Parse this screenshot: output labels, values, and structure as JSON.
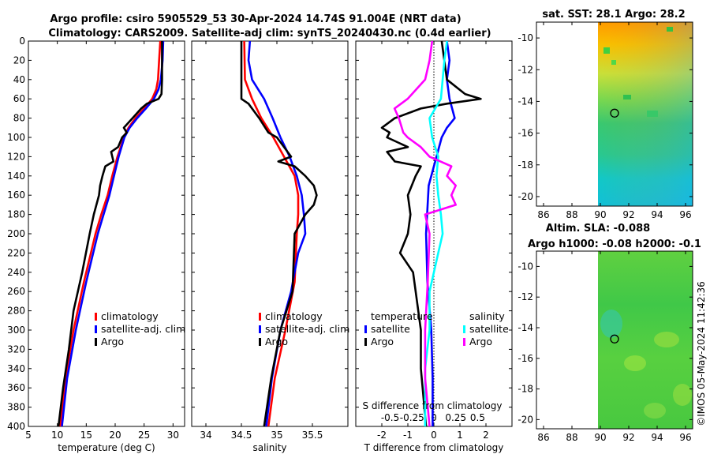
{
  "title": {
    "line1": "Argo profile: csiro 5905529_53 30-Apr-2024 14.74S 91.004E (NRT data)",
    "line2": "Climatology: CARS2009. Satellite-adj clim: synTS_20240430.nc (0.4d earlier)"
  },
  "colors": {
    "climatology": "#ff0000",
    "satellite": "#0000ff",
    "argo": "#000000",
    "argo_diff_t": "#ff00ff",
    "satellite_diff_s": "#00ffff"
  },
  "chart_data": [
    {
      "type": "line",
      "id": "temperature",
      "xlabel": "temperature (deg C)",
      "ylabel": "",
      "xlim": [
        5,
        32
      ],
      "ylim": [
        400,
        0
      ],
      "xticks": [
        "5",
        "10",
        "15",
        "20",
        "25",
        "30"
      ],
      "yticks": [
        "0",
        "20",
        "40",
        "60",
        "80",
        "100",
        "120",
        "140",
        "160",
        "180",
        "200",
        "220",
        "240",
        "260",
        "280",
        "300",
        "320",
        "340",
        "360",
        "380",
        "400"
      ],
      "legend": [
        "climatology",
        "satellite-adj. clim",
        "Argo"
      ],
      "series": [
        {
          "name": "climatology",
          "color": "#ff0000",
          "depth": [
            0,
            20,
            40,
            50,
            60,
            70,
            80,
            90,
            100,
            120,
            140,
            160,
            180,
            200,
            250,
            300,
            350,
            400
          ],
          "values": [
            27.8,
            27.6,
            27.4,
            27.1,
            26.4,
            25.0,
            23.5,
            22.3,
            21.5,
            20.4,
            19.5,
            18.7,
            17.6,
            16.6,
            14.6,
            12.8,
            11.4,
            10.5
          ]
        },
        {
          "name": "satellite-adj. clim",
          "color": "#0000ff",
          "depth": [
            0,
            20,
            40,
            50,
            60,
            70,
            80,
            90,
            100,
            120,
            140,
            160,
            180,
            200,
            250,
            300,
            350,
            400
          ],
          "values": [
            28.3,
            28.2,
            27.9,
            27.5,
            26.7,
            25.3,
            23.8,
            22.5,
            21.6,
            20.6,
            19.8,
            19.0,
            18.0,
            17.0,
            15.0,
            13.2,
            11.7,
            10.8
          ]
        },
        {
          "name": "Argo",
          "color": "#000000",
          "depth": [
            0,
            40,
            55,
            60,
            65,
            70,
            80,
            90,
            95,
            100,
            110,
            115,
            125,
            130,
            140,
            150,
            160,
            180,
            200,
            240,
            280,
            320,
            360,
            400
          ],
          "values": [
            28.1,
            28.1,
            28.0,
            27.5,
            25.5,
            24.5,
            23.0,
            21.5,
            22.0,
            21.2,
            20.5,
            19.3,
            19.7,
            18.3,
            17.8,
            17.4,
            17.2,
            16.3,
            15.6,
            14.3,
            12.8,
            12.0,
            11.0,
            10.2
          ]
        }
      ]
    },
    {
      "type": "line",
      "id": "salinity",
      "xlabel": "salinity",
      "ylabel": "",
      "xlim": [
        33.8,
        36.0
      ],
      "ylim": [
        400,
        0
      ],
      "xticks": [
        "34",
        "34.5",
        "35",
        "35.5"
      ],
      "legend": [
        "climatology",
        "satellite-adj. clim",
        "Argo"
      ],
      "series": [
        {
          "name": "climatology",
          "color": "#ff0000",
          "depth": [
            0,
            40,
            60,
            80,
            100,
            120,
            140,
            160,
            180,
            200,
            250,
            300,
            350,
            400
          ],
          "values": [
            34.54,
            34.55,
            34.65,
            34.78,
            34.95,
            35.1,
            35.25,
            35.3,
            35.3,
            35.28,
            35.25,
            35.12,
            34.97,
            34.88
          ]
        },
        {
          "name": "satellite-adj. clim",
          "color": "#0000ff",
          "depth": [
            0,
            20,
            40,
            60,
            80,
            100,
            120,
            140,
            160,
            180,
            200,
            220,
            260,
            300,
            350,
            400
          ],
          "values": [
            34.62,
            34.6,
            34.65,
            34.82,
            34.94,
            35.05,
            35.18,
            35.28,
            35.35,
            35.38,
            35.4,
            35.3,
            35.2,
            35.05,
            34.93,
            34.85
          ]
        },
        {
          "name": "Argo",
          "color": "#000000",
          "depth": [
            0,
            30,
            60,
            65,
            80,
            95,
            100,
            120,
            125,
            130,
            140,
            150,
            160,
            170,
            180,
            200,
            260,
            300,
            350,
            400
          ],
          "values": [
            34.5,
            34.5,
            34.5,
            34.6,
            34.75,
            34.88,
            35.0,
            35.2,
            35.02,
            35.25,
            35.4,
            35.52,
            35.56,
            35.52,
            35.4,
            35.25,
            35.22,
            35.05,
            34.92,
            34.82
          ]
        }
      ]
    },
    {
      "type": "line",
      "id": "differences",
      "xlabel": "T difference from climatology",
      "xlabel_top": "S difference from climatology",
      "xlim": [
        -3,
        3
      ],
      "ylim": [
        400,
        0
      ],
      "xticks": [
        "-2",
        "-1",
        "0",
        "1",
        "2"
      ],
      "xticks_salinity": [
        "-0.5",
        "-0.25",
        "0",
        "0.25",
        "0.5"
      ],
      "legend_titles": [
        "temperature",
        "salinity"
      ],
      "legend": [
        "satellite",
        "Argo",
        "satellite",
        "Argo"
      ],
      "series": [
        {
          "name": "temperature satellite",
          "color": "#0000ff",
          "depth": [
            0,
            20,
            40,
            60,
            70,
            80,
            90,
            100,
            120,
            150,
            200,
            250,
            300,
            350,
            400
          ],
          "values": [
            0.5,
            0.6,
            0.5,
            0.6,
            0.7,
            0.8,
            0.5,
            0.3,
            0.1,
            -0.2,
            -0.3,
            -0.25,
            -0.1,
            -0.05,
            -0.05
          ]
        },
        {
          "name": "temperature Argo",
          "color": "#000000",
          "depth": [
            0,
            40,
            55,
            60,
            65,
            70,
            80,
            90,
            95,
            100,
            110,
            115,
            125,
            130,
            140,
            160,
            180,
            200,
            220,
            240,
            260,
            300,
            340,
            400
          ],
          "values": [
            0.3,
            0.5,
            1.2,
            1.8,
            0.5,
            -0.5,
            -1.5,
            -2.0,
            -1.7,
            -1.8,
            -1.0,
            -1.8,
            -1.5,
            -0.5,
            -0.7,
            -1.0,
            -0.9,
            -1.0,
            -1.3,
            -0.8,
            -0.7,
            -0.5,
            -0.5,
            -0.3
          ]
        },
        {
          "name": "salinity satellite",
          "color": "#00ffff",
          "depth": [
            0,
            20,
            40,
            60,
            80,
            100,
            120,
            140,
            160,
            180,
            200,
            220,
            260,
            300,
            340,
            400
          ],
          "values": [
            0.15,
            0.12,
            0.1,
            0.08,
            -0.05,
            -0.02,
            0.05,
            0.03,
            0.05,
            0.08,
            0.1,
            0.05,
            -0.05,
            -0.05,
            -0.1,
            -0.1
          ]
        },
        {
          "name": "salinity Argo",
          "color": "#ff00ff",
          "depth": [
            0,
            20,
            40,
            60,
            70,
            80,
            95,
            100,
            110,
            120,
            130,
            140,
            150,
            160,
            170,
            180,
            200,
            250,
            300,
            350,
            400
          ],
          "values": [
            -0.02,
            -0.05,
            -0.1,
            -0.3,
            -0.45,
            -0.4,
            -0.35,
            -0.3,
            -0.15,
            -0.05,
            0.2,
            0.15,
            0.25,
            0.2,
            0.25,
            -0.1,
            -0.05,
            -0.07,
            -0.1,
            -0.1,
            -0.05
          ]
        }
      ]
    },
    {
      "type": "heatmap",
      "id": "sst_map",
      "title": "sat. SST: 28.1 Argo: 28.2",
      "xlim": [
        85.5,
        96.5
      ],
      "ylim": [
        -20.6,
        -9.0
      ],
      "xticks": [
        "86",
        "88",
        "90",
        "92",
        "94",
        "96"
      ],
      "yticks": [
        "-10",
        "-12",
        "-14",
        "-16",
        "-18",
        "-20"
      ],
      "data_xrange": [
        90,
        96.5
      ],
      "marker": {
        "lon": 91.0,
        "lat": -14.74
      }
    },
    {
      "type": "heatmap",
      "id": "sla_map",
      "title_line1": "Altim. SLA: -0.088",
      "title_line2": "Argo h1000: -0.08 h2000: -0.1",
      "xlim": [
        85.5,
        96.5
      ],
      "ylim": [
        -20.6,
        -9.0
      ],
      "xticks": [
        "86",
        "88",
        "90",
        "92",
        "94",
        "96"
      ],
      "yticks": [
        "-10",
        "-12",
        "-14",
        "-16",
        "-18",
        "-20"
      ],
      "data_xrange": [
        90,
        96.5
      ],
      "marker": {
        "lon": 91.0,
        "lat": -14.74
      }
    }
  ],
  "watermark": "©IMOS 05-May-2024 11:42:36"
}
